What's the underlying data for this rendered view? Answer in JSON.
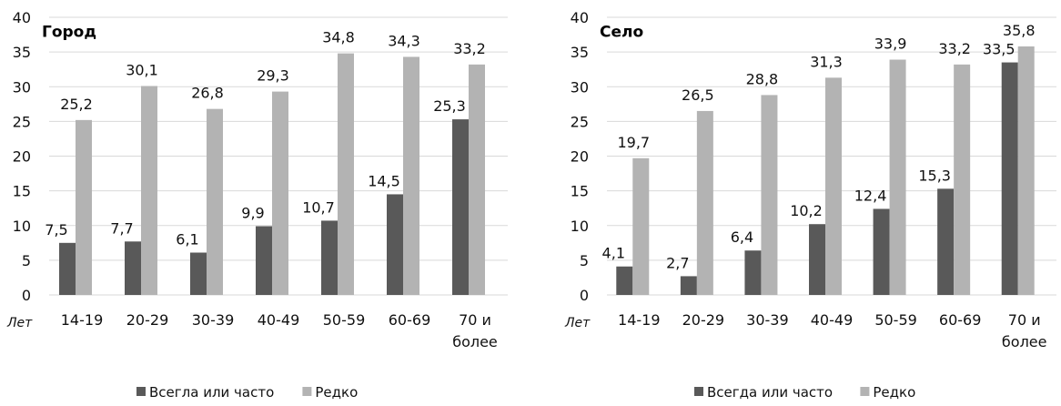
{
  "colors": {
    "often": "#595959",
    "rarely": "#b3b3b3",
    "grid": "#d9d9d9"
  },
  "chart_data": [
    {
      "type": "bar",
      "title": "Город",
      "xlabel": "Лет",
      "ylabel": "",
      "ylim": [
        0,
        40
      ],
      "yticks": [
        0,
        5,
        10,
        15,
        20,
        25,
        30,
        35,
        40
      ],
      "categories": [
        "14-19",
        "20-29",
        "30-39",
        "40-49",
        "50-59",
        "60-69",
        "70 и более"
      ],
      "category_lines": [
        [
          "14-19"
        ],
        [
          "20-29"
        ],
        [
          "30-39"
        ],
        [
          "40-49"
        ],
        [
          "50-59"
        ],
        [
          "60-69"
        ],
        [
          "70 и",
          "более"
        ]
      ],
      "series": [
        {
          "name": "Всегла или часто",
          "values": [
            7.5,
            7.7,
            6.1,
            9.9,
            10.7,
            14.5,
            25.3
          ],
          "labels": [
            "7,5",
            "7,7",
            "6,1",
            "9,9",
            "10,7",
            "14,5",
            "25,3"
          ]
        },
        {
          "name": "Редко",
          "values": [
            25.2,
            30.1,
            26.8,
            29.3,
            34.8,
            34.3,
            33.2
          ],
          "labels": [
            "25,2",
            "30,1",
            "26,8",
            "29,3",
            "34,8",
            "34,3",
            "33,2"
          ]
        }
      ],
      "legend": "bottom",
      "grid": true
    },
    {
      "type": "bar",
      "title": "Село",
      "xlabel": "Лет",
      "ylabel": "",
      "ylim": [
        0,
        40
      ],
      "yticks": [
        0,
        5,
        10,
        15,
        20,
        25,
        30,
        35,
        40
      ],
      "categories": [
        "14-19",
        "20-29",
        "30-39",
        "40-49",
        "50-59",
        "60-69",
        "70 и более"
      ],
      "category_lines": [
        [
          "14-19"
        ],
        [
          "20-29"
        ],
        [
          "30-39"
        ],
        [
          "40-49"
        ],
        [
          "50-59"
        ],
        [
          "60-69"
        ],
        [
          "70 и",
          "более"
        ]
      ],
      "series": [
        {
          "name": "Всегда или часто",
          "values": [
            4.1,
            2.7,
            6.4,
            10.2,
            12.4,
            15.3,
            33.5
          ],
          "labels": [
            "4,1",
            "2,7",
            "6,4",
            "10,2",
            "12,4",
            "15,3",
            "33,5"
          ]
        },
        {
          "name": "Редко",
          "values": [
            19.7,
            26.5,
            28.8,
            31.3,
            33.9,
            33.2,
            35.8
          ],
          "labels": [
            "19,7",
            "26,5",
            "28,8",
            "31,3",
            "33,9",
            "33,2",
            "35,8"
          ]
        }
      ],
      "legend": "bottom",
      "grid": true
    }
  ]
}
